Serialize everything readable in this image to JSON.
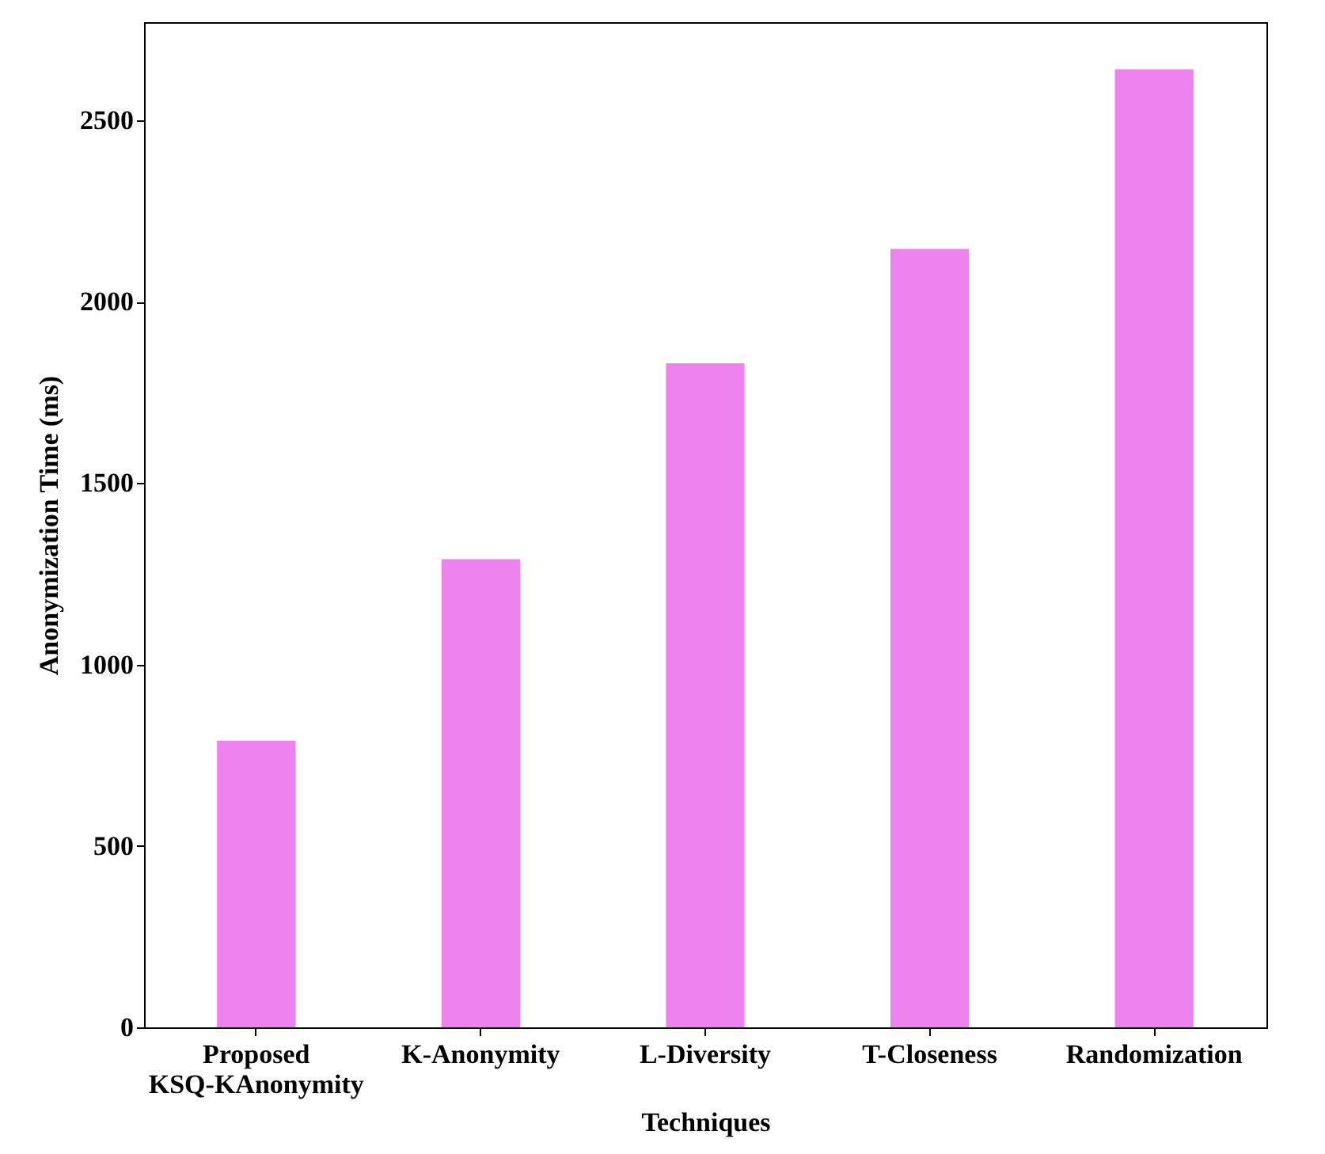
{
  "chart_data": {
    "type": "bar",
    "xlabel": "Techniques",
    "ylabel": "Anonymization Time (ms)",
    "categories": [
      "Proposed\nKSQ-KAnonymity",
      "K-Anonymity",
      "L-Diversity",
      "T-Closeness",
      "Randomization"
    ],
    "values": [
      790,
      1290,
      1830,
      2145,
      2640
    ],
    "color": "#ee82ee",
    "ylim": [
      0,
      2770
    ],
    "yticks": [
      0,
      500,
      1000,
      1500,
      2000,
      2500
    ],
    "grid": false
  }
}
